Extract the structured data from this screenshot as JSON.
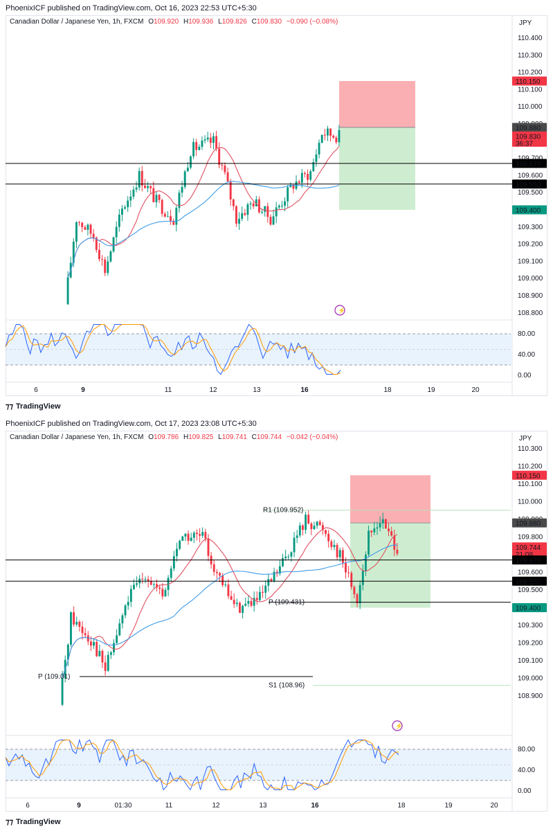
{
  "panels": [
    {
      "published": "PhoenixICF published on TradingView.com, Oct 16, 2023 22:53 UTC+5:30",
      "legend": {
        "symbol": "Canadian Dollar / Japanese Yen, 1h, FXCM",
        "o": "109.920",
        "h": "109.936",
        "l": "109.826",
        "c": "109.830",
        "chg": "−0.090 (−0.08%)"
      },
      "currency": "JPY",
      "brand": "TradingView"
    },
    {
      "published": "PhoenixICF published on TradingView.com, Oct 17, 2023 23:08 UTC+5:30",
      "legend": {
        "symbol": "Canadian Dollar / Japanese Yen, 1h, FXCM",
        "o": "109.786",
        "h": "109.825",
        "l": "109.741",
        "c": "109.744",
        "chg": "−0.042 (−0.04%)"
      },
      "currency": "JPY",
      "brand": "TradingView"
    }
  ],
  "chart_data": [
    {
      "type": "candlestick",
      "title": "Canadian Dollar / Japanese Yen, 1h, FXCM",
      "ylim": [
        108.75,
        110.45
      ],
      "y_ticks": [
        "110.400",
        "110.300",
        "110.200",
        "110.100",
        "110.000",
        "109.900",
        "109.800",
        "109.700",
        "109.600",
        "109.500",
        "109.400",
        "109.300",
        "109.200",
        "109.100",
        "109.000",
        "108.900",
        "108.800"
      ],
      "x_ticks": [
        "6",
        "9",
        "11",
        "12",
        "13",
        "16",
        "18",
        "19",
        "20"
      ],
      "horizontal_lines": [
        109.67,
        109.55
      ],
      "price_tags": [
        {
          "label": "110.150",
          "value": 110.15,
          "color": "#f23645"
        },
        {
          "label": "109.880",
          "value": 109.88,
          "color": "#4a4a4a"
        },
        {
          "label": "109.830",
          "value": 109.83,
          "color": "#f23645",
          "sub": "36:37"
        },
        {
          "label": "109.670",
          "value": 109.67,
          "color": "#000000"
        },
        {
          "label": "109.550",
          "value": 109.55,
          "color": "#000000"
        },
        {
          "label": "109.400",
          "value": 109.4,
          "color": "#089981"
        }
      ],
      "position": {
        "type": "short",
        "entry": 109.88,
        "stop": 110.15,
        "target": 109.4
      },
      "oscillator": {
        "type": "stochastic",
        "levels": [
          80,
          20
        ],
        "ticks": [
          "80.00",
          "40.00",
          "0.00"
        ]
      },
      "last_close": 109.83
    },
    {
      "type": "candlestick",
      "title": "Canadian Dollar / Japanese Yen, 1h, FXCM",
      "ylim": [
        108.8,
        110.35
      ],
      "y_ticks": [
        "110.300",
        "110.200",
        "110.100",
        "110.000",
        "109.900",
        "109.800",
        "109.700",
        "109.600",
        "109.500",
        "109.400",
        "109.300",
        "109.200",
        "109.100",
        "109.000",
        "108.900"
      ],
      "x_ticks": [
        "6",
        "9",
        "01:30",
        "11",
        "12",
        "13",
        "16",
        "18",
        "19",
        "20"
      ],
      "horizontal_lines": [
        109.67,
        109.55
      ],
      "pivots": [
        {
          "label": "R1 (109.952)",
          "value": 109.952
        },
        {
          "label": "P (109.431)",
          "value": 109.431
        },
        {
          "label": "P (109.01)",
          "value": 109.01
        },
        {
          "label": "S1 (108.96)",
          "value": 108.96
        }
      ],
      "price_tags": [
        {
          "label": "110.150",
          "value": 110.15,
          "color": "#f23645"
        },
        {
          "label": "109.880",
          "value": 109.88,
          "color": "#4a4a4a"
        },
        {
          "label": "109.744",
          "value": 109.744,
          "color": "#f23645",
          "sub": "21:08"
        },
        {
          "label": "109.670",
          "value": 109.67,
          "color": "#000000"
        },
        {
          "label": "109.550",
          "value": 109.55,
          "color": "#000000"
        },
        {
          "label": "109.400",
          "value": 109.4,
          "color": "#089981"
        }
      ],
      "position": {
        "type": "short",
        "entry": 109.88,
        "stop": 110.15,
        "target": 109.4
      },
      "oscillator": {
        "type": "stochastic",
        "levels": [
          80,
          20
        ],
        "ticks": [
          "80.00",
          "40.00",
          "0.00"
        ]
      },
      "last_close": 109.744
    }
  ]
}
